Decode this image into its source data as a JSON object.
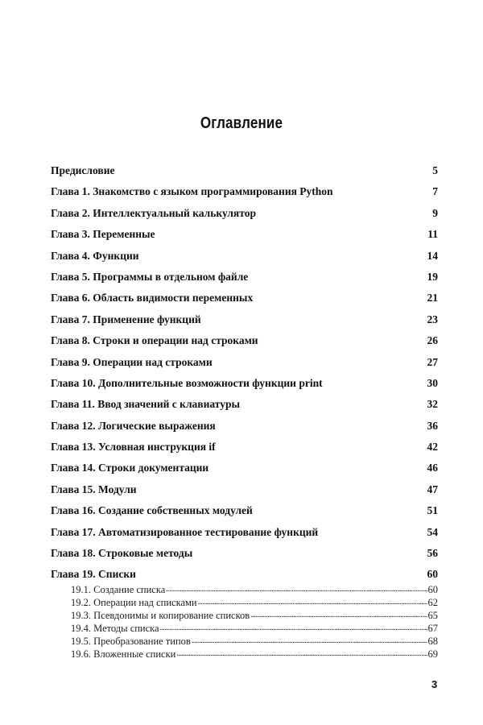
{
  "title": "Оглавление",
  "entries": [
    {
      "label": "Предисловие",
      "page": "5"
    },
    {
      "label": "Глава 1. Знакомство с языком программирования Python",
      "page": "7"
    },
    {
      "label": "Глава 2. Интеллектуальный калькулятор",
      "page": "9"
    },
    {
      "label": "Глава 3. Переменные",
      "page": "11"
    },
    {
      "label": "Глава 4. Функции",
      "page": "14"
    },
    {
      "label": "Глава 5. Программы в отдельном файле",
      "page": "19"
    },
    {
      "label": "Глава 6. Область видимости переменных",
      "page": "21"
    },
    {
      "label": "Глава 7. Применение функций",
      "page": "23"
    },
    {
      "label": "Глава 8. Строки и операции над строками",
      "page": "26"
    },
    {
      "label": "Глава 9. Операции над строками",
      "page": "27"
    },
    {
      "label": "Глава 10. Дополнительные возможности функции print",
      "page": "30"
    },
    {
      "label": "Глава 11. Ввод значений с клавиатуры",
      "page": "32"
    },
    {
      "label": "Глава 12. Логические выражения",
      "page": "36"
    },
    {
      "label": "Глава 13. Условная инструкция if",
      "page": "42"
    },
    {
      "label": "Глава 14. Строки документации",
      "page": "46"
    },
    {
      "label": "Глава 15. Модули",
      "page": "47"
    },
    {
      "label": "Глава 16. Создание собственных модулей",
      "page": "51"
    },
    {
      "label": "Глава 17. Автоматизированное тестирование функций",
      "page": "54"
    },
    {
      "label": "Глава 18. Строковые методы",
      "page": "56"
    },
    {
      "label": "Глава 19. Списки",
      "page": "60"
    }
  ],
  "subentries": [
    {
      "label": "19.1. Создание списка",
      "page": "60"
    },
    {
      "label": "19.2. Операции над списками",
      "page": "62"
    },
    {
      "label": "19.3. Псевдонимы и копирование списков",
      "page": "65"
    },
    {
      "label": "19.4. Методы списка",
      "page": "67"
    },
    {
      "label": "19.5. Преобразование типов",
      "page": "68"
    },
    {
      "label": "19.6. Вложенные списки",
      "page": "69"
    }
  ],
  "page_number": "3"
}
